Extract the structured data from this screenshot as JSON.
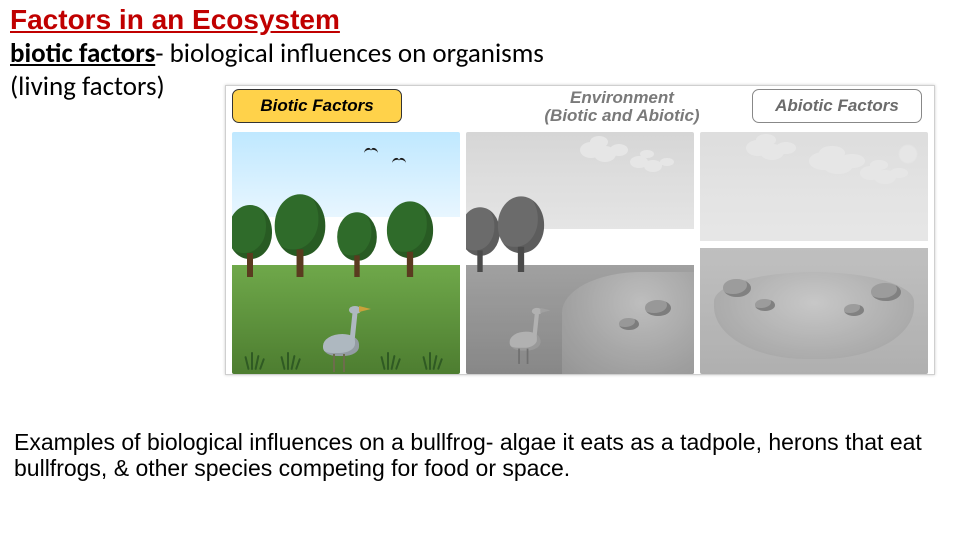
{
  "title": "Factors in an Ecosystem",
  "definition": {
    "term": "biotic factors",
    "dash": "- ",
    "desc": "biological influences on organisms",
    "sub": "(living factors)"
  },
  "diagram": {
    "labels": {
      "biotic": "Biotic Factors",
      "env_line1": "Environment",
      "env_line2": "(Biotic and Abiotic)",
      "abiotic": "Abiotic Factors"
    },
    "colors": {
      "biotic_bg": "#ffd24a",
      "biotic_text": "#000000",
      "env_text": "#7a7a7a",
      "abiotic_text": "#6b6b6b",
      "abiotic_border": "#888888",
      "frame_border": "#cfcfcf"
    }
  },
  "examples": "Examples of biological influences on a bullfrog-  algae it eats as a tadpole, herons that eat bullfrogs, & other species competing for food or space.",
  "style": {
    "title_color": "#c00000",
    "title_fontsize": 28,
    "body_fontsize": 27,
    "examples_fontsize": 23,
    "background_color": "#ffffff"
  }
}
